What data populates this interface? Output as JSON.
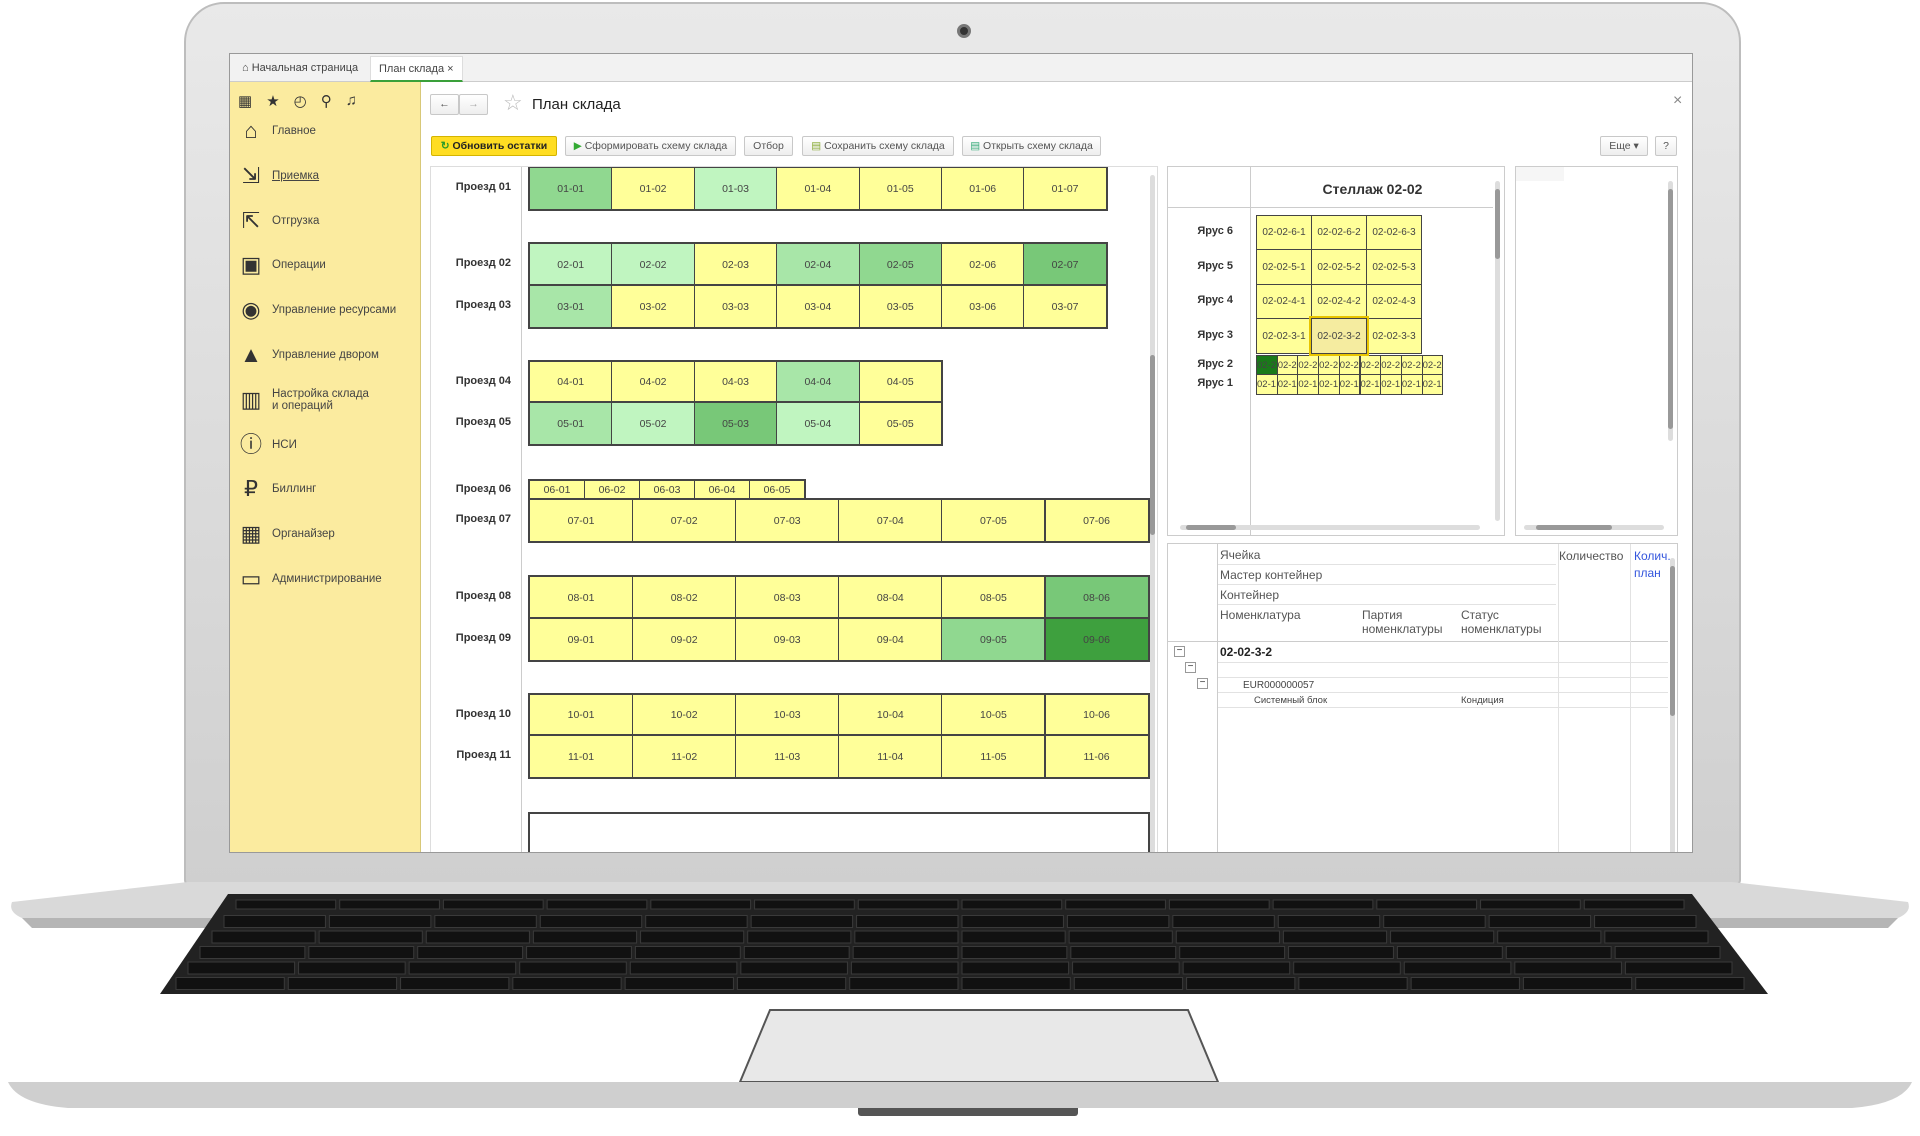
{
  "tabs": [
    {
      "label": "Начальная страница",
      "icon": "home-icon"
    },
    {
      "label": "План склада",
      "close": "×"
    }
  ],
  "sidebar": {
    "top_icons": [
      "apps-grid-icon",
      "star-icon",
      "history-icon",
      "search-icon",
      "bell-icon"
    ],
    "items": [
      {
        "label": "Главное",
        "icon": "home-icon"
      },
      {
        "label": "Приемка",
        "icon": "receiving-icon",
        "active": true
      },
      {
        "label": "Отгрузка",
        "icon": "shipping-icon"
      },
      {
        "label": "Операции",
        "icon": "operations-icon"
      },
      {
        "label": "Управление ресурсами",
        "icon": "resources-icon"
      },
      {
        "label": "Управление двором",
        "icon": "yard-icon"
      },
      {
        "label": "Настройка склада и операций",
        "icon": "settings-sliders-icon"
      },
      {
        "label": "НСИ",
        "icon": "reference-info-icon"
      },
      {
        "label": "Биллинг",
        "icon": "billing-icon"
      },
      {
        "label": "Органайзер",
        "icon": "organizer-icon"
      },
      {
        "label": "Администрирование",
        "icon": "admin-icon"
      }
    ]
  },
  "header": {
    "back": "←",
    "forward": "→",
    "star": "☆",
    "title": "План склада",
    "close": "×"
  },
  "toolbar": {
    "refresh": "Обновить остатки",
    "build": "Сформировать схему склада",
    "filter": "Отбор",
    "save": "Сохранить схему склада",
    "open": "Открыть схему склада",
    "more": "Еще ▾",
    "help": "?"
  },
  "colors": {
    "empty": "#ffff99",
    "l1": "#c0f5c0",
    "l2": "#a8e6a8",
    "l3": "#90d890",
    "l4": "#78c878",
    "l5": "#3ea03e",
    "accent": "#ffdd22"
  },
  "plan": {
    "rows": [
      {
        "label": "Проезд 01",
        "cells": [
          [
            "01-01",
            "l3"
          ],
          [
            "01-02",
            "empty"
          ],
          [
            "01-03",
            "l1"
          ],
          [
            "01-04",
            "empty"
          ],
          [
            "01-05",
            "empty"
          ],
          [
            "01-06",
            "empty"
          ],
          [
            "01-07",
            "empty"
          ]
        ]
      },
      {
        "label": "Проезд 02",
        "cells": [
          [
            "02-01",
            "l1"
          ],
          [
            "02-02",
            "l1"
          ],
          [
            "02-03",
            "empty"
          ],
          [
            "02-04",
            "l2"
          ],
          [
            "02-05",
            "l3"
          ],
          [
            "02-06",
            "empty"
          ],
          [
            "02-07",
            "l4"
          ]
        ]
      },
      {
        "label": "Проезд 03",
        "cells": [
          [
            "03-01",
            "l2"
          ],
          [
            "03-02",
            "empty"
          ],
          [
            "03-03",
            "empty"
          ],
          [
            "03-04",
            "empty"
          ],
          [
            "03-05",
            "empty"
          ],
          [
            "03-06",
            "empty"
          ],
          [
            "03-07",
            "empty"
          ]
        ]
      },
      {
        "label": "Проезд 04",
        "cells": [
          [
            "04-01",
            "empty"
          ],
          [
            "04-02",
            "empty"
          ],
          [
            "04-03",
            "empty"
          ],
          [
            "04-04",
            "l2"
          ],
          [
            "04-05",
            "empty"
          ]
        ]
      },
      {
        "label": "Проезд 05",
        "cells": [
          [
            "05-01",
            "l2"
          ],
          [
            "05-02",
            "l1"
          ],
          [
            "05-03",
            "l4"
          ],
          [
            "05-04",
            "l1"
          ],
          [
            "05-05",
            "empty"
          ]
        ]
      },
      {
        "label": "Проезд 06",
        "cells": [
          [
            "06-01",
            "empty"
          ],
          [
            "06-02",
            "empty"
          ],
          [
            "06-03",
            "empty"
          ],
          [
            "06-04",
            "empty"
          ],
          [
            "06-05",
            "empty"
          ]
        ]
      },
      {
        "label": "Проезд 07",
        "cells": [
          [
            "07-01",
            "empty"
          ],
          [
            "07-02",
            "empty"
          ],
          [
            "07-03",
            "empty"
          ],
          [
            "07-04",
            "empty"
          ],
          [
            "07-05",
            "empty"
          ],
          [
            "07-06",
            "empty"
          ]
        ]
      },
      {
        "label": "Проезд 08",
        "cells": [
          [
            "08-01",
            "empty"
          ],
          [
            "08-02",
            "empty"
          ],
          [
            "08-03",
            "empty"
          ],
          [
            "08-04",
            "empty"
          ],
          [
            "08-05",
            "empty"
          ],
          [
            "08-06",
            "l4"
          ]
        ]
      },
      {
        "label": "Проезд 09",
        "cells": [
          [
            "09-01",
            "empty"
          ],
          [
            "09-02",
            "empty"
          ],
          [
            "09-03",
            "empty"
          ],
          [
            "09-04",
            "empty"
          ],
          [
            "09-05",
            "l3"
          ],
          [
            "09-06",
            "l5"
          ]
        ]
      },
      {
        "label": "Проезд 10",
        "cells": [
          [
            "10-01",
            "empty"
          ],
          [
            "10-02",
            "empty"
          ],
          [
            "10-03",
            "empty"
          ],
          [
            "10-04",
            "empty"
          ],
          [
            "10-05",
            "empty"
          ],
          [
            "10-06",
            "empty"
          ]
        ]
      },
      {
        "label": "Проезд 11",
        "cells": [
          [
            "11-01",
            "empty"
          ],
          [
            "11-02",
            "empty"
          ],
          [
            "11-03",
            "empty"
          ],
          [
            "11-04",
            "empty"
          ],
          [
            "11-05",
            "empty"
          ],
          [
            "11-06",
            "empty"
          ]
        ]
      }
    ]
  },
  "rack": {
    "title": "Стеллаж 02-02",
    "selected": "02-02-3-2",
    "tiers": [
      {
        "label": "Ярус 6",
        "cells": [
          "02-02-6-1",
          "02-02-6-2",
          "02-02-6-3"
        ]
      },
      {
        "label": "Ярус 5",
        "cells": [
          "02-02-5-1",
          "02-02-5-2",
          "02-02-5-3"
        ]
      },
      {
        "label": "Ярус 4",
        "cells": [
          "02-02-4-1",
          "02-02-4-2",
          "02-02-4-3"
        ]
      },
      {
        "label": "Ярус 3",
        "cells": [
          "02-02-3-1",
          "02-02-3-2",
          "02-02-3-3"
        ]
      },
      {
        "label": "Ярус 2",
        "cells": [
          "02-2",
          "02-2",
          "02-2",
          "02-2",
          "02-2",
          "02-2",
          "02-2",
          "02-2",
          "02-2"
        ]
      },
      {
        "label": "Ярус 1",
        "cells": [
          "02-1",
          "02-1",
          "02-1",
          "02-1",
          "02-1",
          "02-1",
          "02-1",
          "02-1",
          "02-1"
        ]
      }
    ]
  },
  "details": {
    "headers": {
      "cell": "Ячейка",
      "master": "Мастер контейнер",
      "container": "Контейнер",
      "nomenclature": "Номенклатура",
      "batch": "Партия номенклатуры",
      "status": "Статус номенклатуры",
      "qty": "Количество",
      "qty_plan": "Колич. план"
    },
    "rows": {
      "cell": "02-02-3-2",
      "container": "EUR000000057",
      "item": "Системный блок",
      "item_status": "Кондиция"
    }
  }
}
